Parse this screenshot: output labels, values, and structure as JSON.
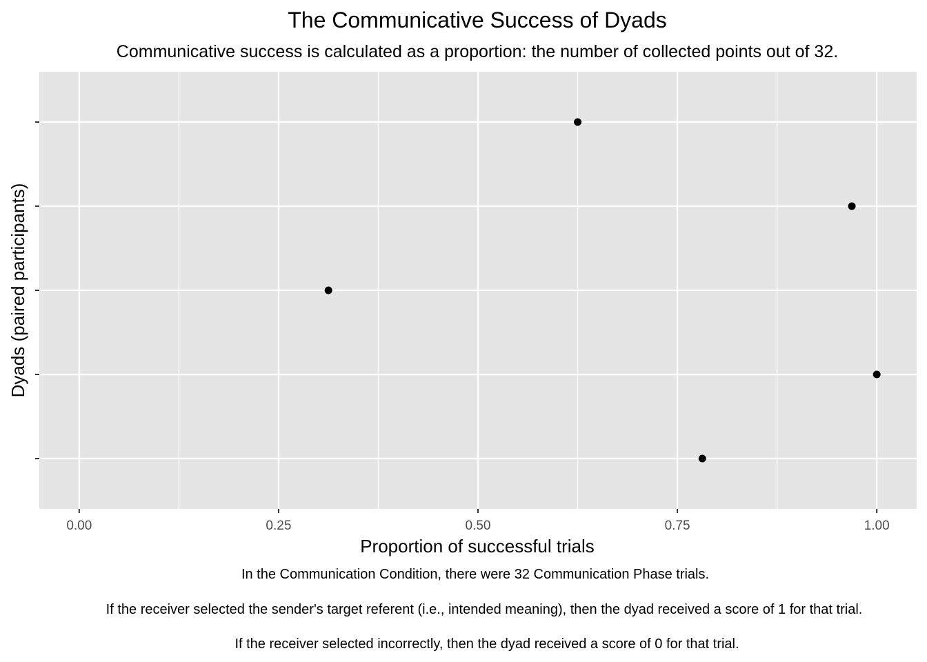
{
  "chart_data": {
    "type": "scatter",
    "title": "The Communicative Success of Dyads",
    "subtitle": "Communicative success is calculated as a proportion: the number of collected points out of 32.",
    "xlabel": "Proportion of successful trials",
    "ylabel": "Dyads (paired participants)",
    "xlim": [
      -0.05,
      1.05
    ],
    "x_ticks": [
      0.0,
      0.25,
      0.5,
      0.75,
      1.0
    ],
    "x_tick_labels": [
      "0.00",
      "0.25",
      "0.50",
      "0.75",
      "1.00"
    ],
    "y_categories": [
      "",
      "",
      "",
      "",
      ""
    ],
    "points": [
      {
        "x": 0.625,
        "dyad": 5
      },
      {
        "x": 0.96875,
        "dyad": 4
      },
      {
        "x": 0.3125,
        "dyad": 3
      },
      {
        "x": 1.0,
        "dyad": 2
      },
      {
        "x": 0.78125,
        "dyad": 1
      }
    ],
    "grid": true,
    "legend": "none",
    "caption": [
      "In the Communication Condition, there were 32 Communication Phase trials.",
      "If the receiver selected the sender's target referent (i.e., intended meaning), then the dyad received a score of 1 for that trial.",
      "If the receiver selected incorrectly, then the dyad received a score of 0 for that trial."
    ],
    "colors": {
      "panel": "#e5e5e5",
      "grid": "#ffffff",
      "point": "#000000",
      "tick_text": "#4d4d4d"
    }
  }
}
